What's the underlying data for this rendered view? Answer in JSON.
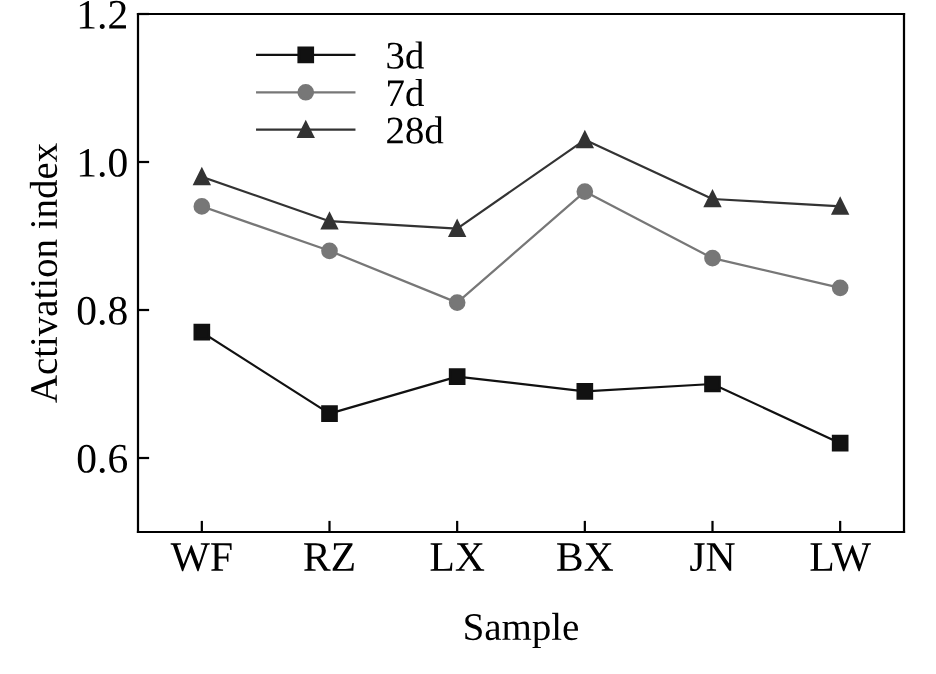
{
  "chart_data": {
    "type": "line",
    "xlabel": "Sample",
    "ylabel": "Activation index",
    "categories": [
      "WF",
      "RZ",
      "LX",
      "BX",
      "JN",
      "LW"
    ],
    "series": [
      {
        "name": "3d",
        "color": "#111111",
        "marker": "square",
        "values": [
          0.77,
          0.66,
          0.71,
          0.69,
          0.7,
          0.62
        ]
      },
      {
        "name": "7d",
        "color": "#777777",
        "marker": "circle",
        "values": [
          0.94,
          0.88,
          0.81,
          0.96,
          0.87,
          0.83
        ]
      },
      {
        "name": "28d",
        "color": "#333333",
        "marker": "triangle",
        "values": [
          0.98,
          0.92,
          0.91,
          1.03,
          0.95,
          0.94
        ]
      }
    ],
    "ylim": [
      0.5,
      1.2
    ],
    "yticks": [
      {
        "value": 0.6,
        "label": "0.6"
      },
      {
        "value": 0.8,
        "label": "0.8"
      },
      {
        "value": 1.0,
        "label": "1.0"
      },
      {
        "value": 1.2,
        "label": "1.2"
      }
    ],
    "grid": false,
    "legend": "top left",
    "line_style": "solid"
  }
}
